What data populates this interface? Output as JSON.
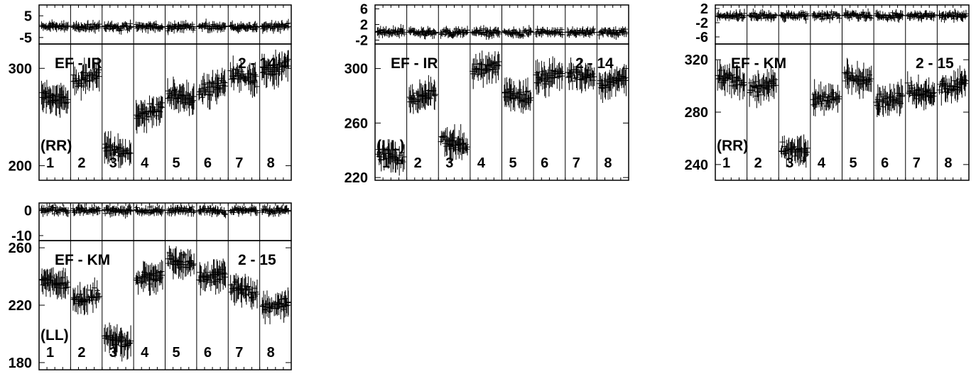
{
  "chart_data": [
    {
      "type": "scatter",
      "baseline": "EF - IR",
      "pol": "(RR)",
      "ifs": "2 - 14",
      "scans": [
        "1",
        "2",
        "3",
        "4",
        "5",
        "6",
        "7",
        "8"
      ],
      "residual": {
        "yticks": [
          5,
          -5
        ],
        "ylim": [
          -8,
          10
        ],
        "zero_line": 0
      },
      "main": {
        "yticks": [
          300,
          200
        ],
        "ylim": [
          185,
          325
        ],
        "scan_levels": [
          270,
          290,
          215,
          255,
          270,
          280,
          290,
          300
        ]
      }
    },
    {
      "type": "scatter",
      "baseline": "EF - IR",
      "pol": "(LL)",
      "ifs": "2 - 14",
      "scans": [
        "1",
        "2",
        "3",
        "4",
        "5",
        "6",
        "7",
        "8"
      ],
      "residual": {
        "yticks": [
          6,
          2,
          -2
        ],
        "ylim": [
          -3,
          7
        ],
        "zero_line": 0
      },
      "main": {
        "yticks": [
          300,
          260,
          220
        ],
        "ylim": [
          218,
          318
        ],
        "scan_levels": [
          235,
          280,
          245,
          300,
          280,
          295,
          295,
          290
        ]
      }
    },
    {
      "type": "scatter",
      "baseline": "EF - KM",
      "pol": "(RR)",
      "ifs": "2 - 15",
      "scans": [
        "1",
        "2",
        "3",
        "4",
        "5",
        "6",
        "7",
        "8"
      ],
      "residual": {
        "yticks": [
          2,
          -2,
          -6
        ],
        "ylim": [
          -8,
          3
        ],
        "zero_line": 0
      },
      "main": {
        "yticks": [
          320,
          280,
          240
        ],
        "ylim": [
          228,
          332
        ],
        "scan_levels": [
          305,
          300,
          250,
          290,
          305,
          290,
          295,
          300
        ]
      }
    },
    {
      "type": "scatter",
      "baseline": "EF - KM",
      "pol": "(LL)",
      "ifs": "2 - 15",
      "scans": [
        "1",
        "2",
        "3",
        "4",
        "5",
        "6",
        "7",
        "8"
      ],
      "residual": {
        "yticks": [
          0,
          -10
        ],
        "ylim": [
          -12,
          3
        ],
        "zero_line": 0
      },
      "main": {
        "yticks": [
          260,
          220,
          180
        ],
        "ylim": [
          175,
          265
        ],
        "scan_levels": [
          235,
          225,
          195,
          240,
          250,
          240,
          230,
          220
        ]
      }
    }
  ]
}
